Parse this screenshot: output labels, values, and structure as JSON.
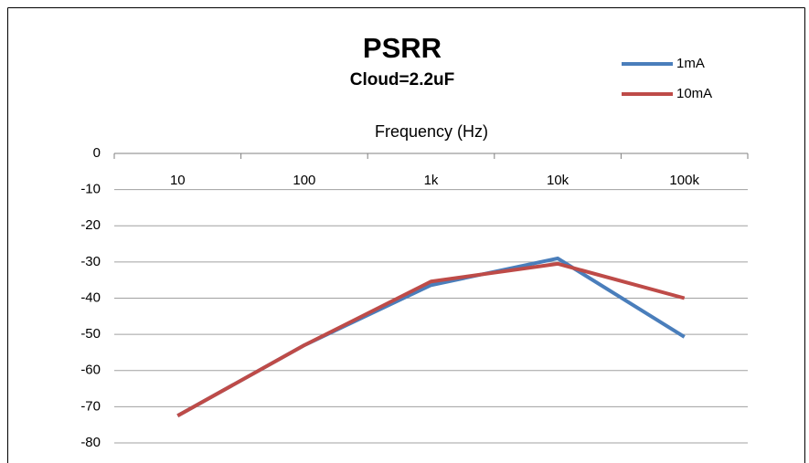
{
  "chart_data": {
    "type": "line",
    "title": "PSRR",
    "subtitle": "Cloud=2.2uF",
    "x_label": "Frequency (Hz)",
    "categories": [
      "10",
      "100",
      "1k",
      "10k",
      "100k"
    ],
    "series": [
      {
        "name": "1mA",
        "color": "#4a7ebb",
        "values": [
          -72.5,
          -53,
          -36.4,
          -29,
          -50.7
        ]
      },
      {
        "name": "10mA",
        "color": "#be4b48",
        "values": [
          -72.5,
          -53,
          -35.4,
          -30.5,
          -40
        ]
      }
    ],
    "ylim": [
      -80,
      0
    ],
    "yticks": [
      0,
      -10,
      -20,
      -30,
      -40,
      -50,
      -60,
      -70,
      -80
    ],
    "grid": true,
    "legend": "upper right"
  }
}
